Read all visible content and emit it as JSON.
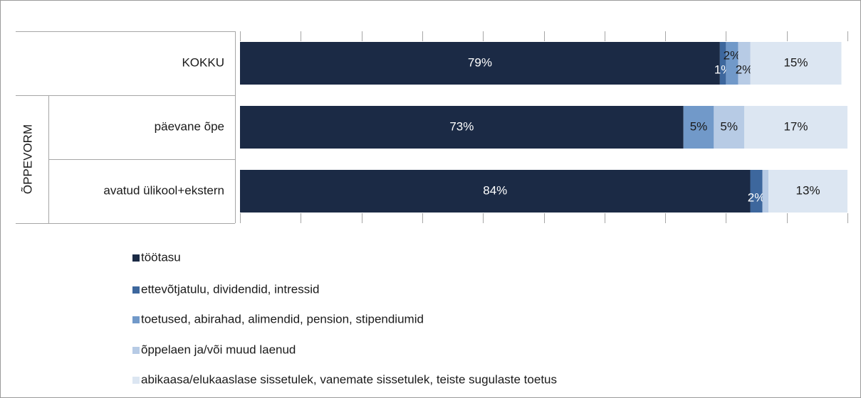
{
  "chart_data": {
    "type": "stacked-barh",
    "categories": [
      "KOKKU",
      "päevane õpe",
      "avatud ülikool+ekstern"
    ],
    "group_label": "ÕPPEVORM",
    "xlim": [
      0,
      100
    ],
    "xticks": [
      0,
      10,
      20,
      30,
      40,
      50,
      60,
      70,
      80,
      90,
      100
    ],
    "series": [
      {
        "name": "töötasu",
        "color": "#1b2a45",
        "values": [
          79,
          73,
          84
        ],
        "value_labels": [
          "79%",
          "73%",
          "84%"
        ]
      },
      {
        "name": "ettevõtjatulu, dividendid, intressid",
        "color": "#3d679d",
        "values": [
          1,
          0,
          2
        ],
        "value_labels": [
          "1%",
          null,
          "2%"
        ]
      },
      {
        "name": "toetused, abirahad, alimendid, pension, stipendiumid",
        "color": "#7199c9",
        "values": [
          2,
          5,
          0
        ],
        "value_labels": [
          "2%",
          "5%",
          null
        ]
      },
      {
        "name": "õppelaen ja/või muud laenud",
        "color": "#b7cbe5",
        "values": [
          2,
          5,
          1
        ],
        "value_labels": [
          "2%",
          "5%",
          null
        ]
      },
      {
        "name": "abikaasa/elukaaslase sissetulek, vanemate sissetulek, teiste sugulaste toetus",
        "color": "#dce6f2",
        "values": [
          15,
          17,
          13
        ],
        "value_labels": [
          "15%",
          "17%",
          "13%"
        ]
      }
    ]
  }
}
